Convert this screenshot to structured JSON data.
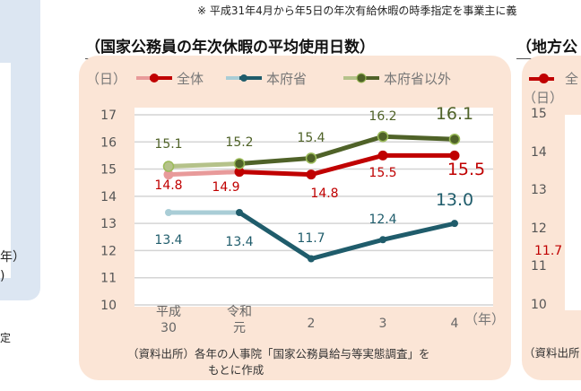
{
  "header_note": "※ 平成31年4月から年5日の年次有給休暇の時季指定を事業主に義",
  "left_fragments": {
    "a": "年）",
    "b": ")",
    "c": "定"
  },
  "chart_data": {
    "type": "line",
    "title": "（国家公務員の年次休暇の平均使用日数）",
    "ylabel": "（日）",
    "xlabel": "（年）",
    "categories": [
      "平成\n30",
      "令和\n元",
      "2",
      "3",
      "4"
    ],
    "category_lines": [
      [
        "平成",
        "30"
      ],
      [
        "令和",
        "元"
      ],
      [
        "2",
        ""
      ],
      [
        "3",
        ""
      ],
      [
        "4",
        ""
      ]
    ],
    "ylim": [
      10,
      17
    ],
    "yticks": [
      10,
      11,
      12,
      13,
      14,
      15,
      16,
      17
    ],
    "grid": true,
    "legend": "top",
    "series": [
      {
        "name": "全体",
        "values": [
          14.8,
          14.9,
          14.8,
          15.5,
          15.5
        ],
        "color": "#c00000",
        "light": "#e89a9a",
        "labels": [
          "14.8",
          "14.9",
          "14.8",
          "15.5",
          "15.5"
        ]
      },
      {
        "name": "本府省",
        "values": [
          13.4,
          13.4,
          11.7,
          12.4,
          13.0
        ],
        "color": "#1f5c6b",
        "light": "#a9cdd6",
        "labels": [
          "13.4",
          "13.4",
          "11.7",
          "12.4",
          "13.0"
        ]
      },
      {
        "name": "本府省以外",
        "values": [
          15.1,
          15.2,
          15.4,
          16.2,
          16.1
        ],
        "color": "#4f6228",
        "light": "#b5c28a",
        "labels": [
          "15.1",
          "15.2",
          "15.4",
          "16.2",
          "16.1"
        ]
      }
    ],
    "source": [
      "（資料出所）各年の人事院「国家公務員給与等実態調査」を",
      "もとに作成"
    ]
  },
  "right_fragments": {
    "title": "（地方公",
    "legend": "全",
    "unit": "（日）",
    "yticks": [
      "15",
      "14",
      "13",
      "12",
      "11",
      "10"
    ],
    "label": "11.7",
    "source": "（資料出所"
  }
}
